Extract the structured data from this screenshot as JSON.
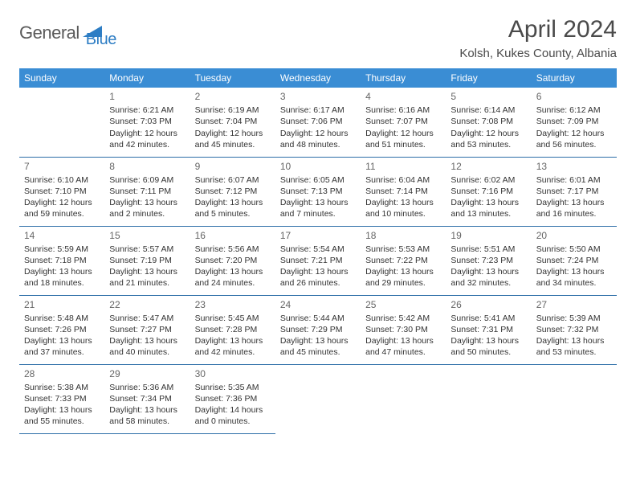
{
  "logo": {
    "text1": "General",
    "text2": "Blue"
  },
  "title": "April 2024",
  "location": "Kolsh, Kukes County, Albania",
  "header_color": "#3a8dd4",
  "border_color": "#2d6ea8",
  "text_color": "#333333",
  "daynum_color": "#666666",
  "days": [
    "Sunday",
    "Monday",
    "Tuesday",
    "Wednesday",
    "Thursday",
    "Friday",
    "Saturday"
  ],
  "month_start_day": 1,
  "month_days": 30,
  "cells": {
    "1": {
      "sunrise": "6:21 AM",
      "sunset": "7:03 PM",
      "daylight": "12 hours and 42 minutes."
    },
    "2": {
      "sunrise": "6:19 AM",
      "sunset": "7:04 PM",
      "daylight": "12 hours and 45 minutes."
    },
    "3": {
      "sunrise": "6:17 AM",
      "sunset": "7:06 PM",
      "daylight": "12 hours and 48 minutes."
    },
    "4": {
      "sunrise": "6:16 AM",
      "sunset": "7:07 PM",
      "daylight": "12 hours and 51 minutes."
    },
    "5": {
      "sunrise": "6:14 AM",
      "sunset": "7:08 PM",
      "daylight": "12 hours and 53 minutes."
    },
    "6": {
      "sunrise": "6:12 AM",
      "sunset": "7:09 PM",
      "daylight": "12 hours and 56 minutes."
    },
    "7": {
      "sunrise": "6:10 AM",
      "sunset": "7:10 PM",
      "daylight": "12 hours and 59 minutes."
    },
    "8": {
      "sunrise": "6:09 AM",
      "sunset": "7:11 PM",
      "daylight": "13 hours and 2 minutes."
    },
    "9": {
      "sunrise": "6:07 AM",
      "sunset": "7:12 PM",
      "daylight": "13 hours and 5 minutes."
    },
    "10": {
      "sunrise": "6:05 AM",
      "sunset": "7:13 PM",
      "daylight": "13 hours and 7 minutes."
    },
    "11": {
      "sunrise": "6:04 AM",
      "sunset": "7:14 PM",
      "daylight": "13 hours and 10 minutes."
    },
    "12": {
      "sunrise": "6:02 AM",
      "sunset": "7:16 PM",
      "daylight": "13 hours and 13 minutes."
    },
    "13": {
      "sunrise": "6:01 AM",
      "sunset": "7:17 PM",
      "daylight": "13 hours and 16 minutes."
    },
    "14": {
      "sunrise": "5:59 AM",
      "sunset": "7:18 PM",
      "daylight": "13 hours and 18 minutes."
    },
    "15": {
      "sunrise": "5:57 AM",
      "sunset": "7:19 PM",
      "daylight": "13 hours and 21 minutes."
    },
    "16": {
      "sunrise": "5:56 AM",
      "sunset": "7:20 PM",
      "daylight": "13 hours and 24 minutes."
    },
    "17": {
      "sunrise": "5:54 AM",
      "sunset": "7:21 PM",
      "daylight": "13 hours and 26 minutes."
    },
    "18": {
      "sunrise": "5:53 AM",
      "sunset": "7:22 PM",
      "daylight": "13 hours and 29 minutes."
    },
    "19": {
      "sunrise": "5:51 AM",
      "sunset": "7:23 PM",
      "daylight": "13 hours and 32 minutes."
    },
    "20": {
      "sunrise": "5:50 AM",
      "sunset": "7:24 PM",
      "daylight": "13 hours and 34 minutes."
    },
    "21": {
      "sunrise": "5:48 AM",
      "sunset": "7:26 PM",
      "daylight": "13 hours and 37 minutes."
    },
    "22": {
      "sunrise": "5:47 AM",
      "sunset": "7:27 PM",
      "daylight": "13 hours and 40 minutes."
    },
    "23": {
      "sunrise": "5:45 AM",
      "sunset": "7:28 PM",
      "daylight": "13 hours and 42 minutes."
    },
    "24": {
      "sunrise": "5:44 AM",
      "sunset": "7:29 PM",
      "daylight": "13 hours and 45 minutes."
    },
    "25": {
      "sunrise": "5:42 AM",
      "sunset": "7:30 PM",
      "daylight": "13 hours and 47 minutes."
    },
    "26": {
      "sunrise": "5:41 AM",
      "sunset": "7:31 PM",
      "daylight": "13 hours and 50 minutes."
    },
    "27": {
      "sunrise": "5:39 AM",
      "sunset": "7:32 PM",
      "daylight": "13 hours and 53 minutes."
    },
    "28": {
      "sunrise": "5:38 AM",
      "sunset": "7:33 PM",
      "daylight": "13 hours and 55 minutes."
    },
    "29": {
      "sunrise": "5:36 AM",
      "sunset": "7:34 PM",
      "daylight": "13 hours and 58 minutes."
    },
    "30": {
      "sunrise": "5:35 AM",
      "sunset": "7:36 PM",
      "daylight": "14 hours and 0 minutes."
    }
  },
  "labels": {
    "sunrise": "Sunrise: ",
    "sunset": "Sunset: ",
    "daylight": "Daylight: "
  }
}
